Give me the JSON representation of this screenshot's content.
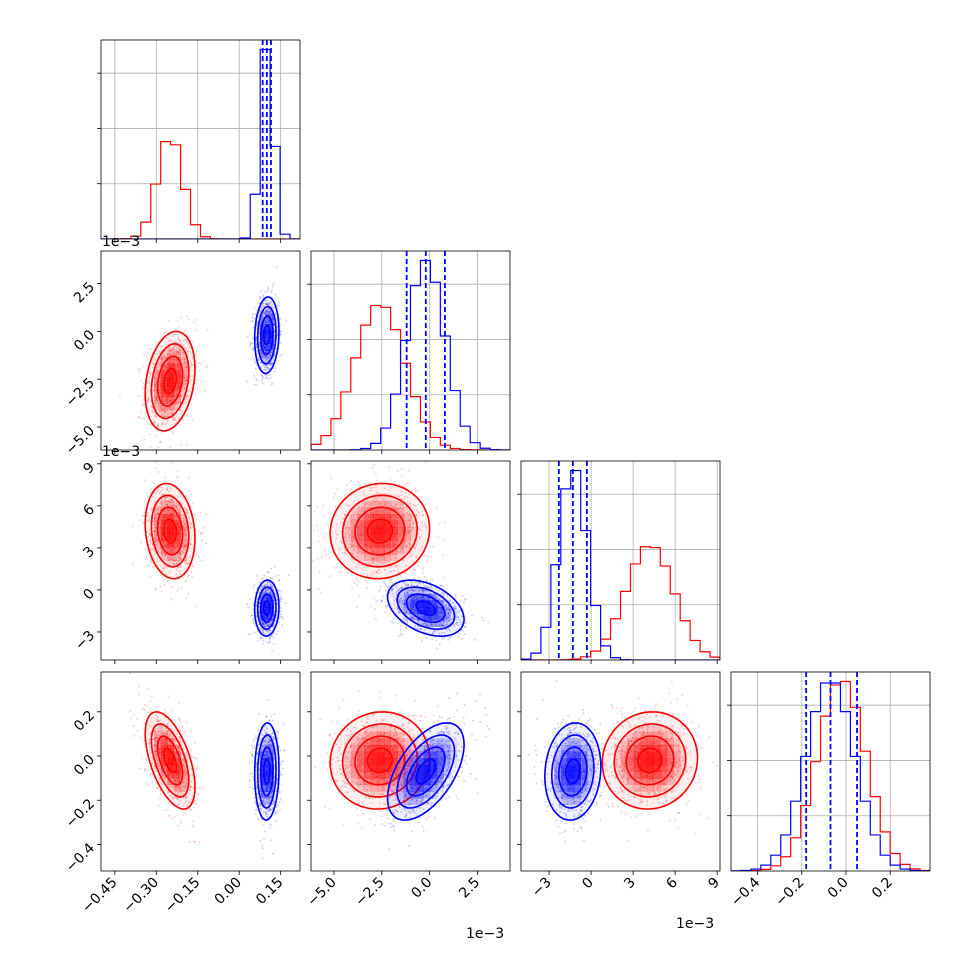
{
  "colors": {
    "red": "#ff0000",
    "blue": "#0000ff"
  },
  "chart_data": {
    "type": "corner",
    "title": "",
    "n_params": 4,
    "legend": "none",
    "grid": true,
    "multipliers": [
      "1e−3",
      "1e−3",
      "1e−3"
    ],
    "params": [
      {
        "range": [
          -0.5,
          0.22
        ],
        "ticks": [
          -0.45,
          -0.3,
          -0.15,
          0.0,
          0.15
        ],
        "labels": [
          "−0.45",
          "−0.30",
          "−0.15",
          "0.00",
          "0.15"
        ]
      },
      {
        "range": [
          -6.2,
          4.2
        ],
        "ticks": [
          -5.0,
          -2.5,
          0.0,
          2.5
        ],
        "labels": [
          "−5.0",
          "−2.5",
          "0.0",
          "2.5"
        ]
      },
      {
        "range": [
          -5.0,
          9.2
        ],
        "ticks": [
          -3,
          0,
          3,
          6,
          9
        ],
        "labels": [
          "−3",
          "0",
          "3",
          "6",
          "9"
        ]
      },
      {
        "range": [
          -0.52,
          0.38
        ],
        "ticks": [
          -0.4,
          -0.2,
          0.0,
          0.2
        ],
        "labels": [
          "−0.4",
          "−0.2",
          "0.0",
          "0.2"
        ]
      }
    ],
    "series": [
      {
        "color": "#ff0000",
        "mean": [
          -0.25,
          -2.6,
          4.2,
          -0.02
        ],
        "std": [
          0.045,
          1.3,
          1.7,
          0.11
        ],
        "corr": {
          "0-1": 0.25,
          "0-2": -0.15,
          "0-3": -0.55,
          "1-2": 0.05,
          "1-3": 0.05,
          "2-3": 0.05
        }
      },
      {
        "color": "#0000ff",
        "mean": [
          0.1,
          -0.2,
          -1.3,
          -0.07
        ],
        "std": [
          0.022,
          1.0,
          1.0,
          0.11
        ],
        "corr": {
          "0-1": 0.1,
          "0-2": 0.05,
          "0-3": 0.05,
          "1-2": -0.4,
          "1-3": 0.55,
          "2-3": 0.1
        }
      }
    ],
    "quantiles": [
      [
        0.085,
        0.1,
        0.115
      ],
      [
        -1.2,
        -0.2,
        0.8
      ],
      [
        -2.3,
        -1.3,
        -0.3
      ],
      [
        -0.18,
        -0.07,
        0.05
      ]
    ]
  }
}
